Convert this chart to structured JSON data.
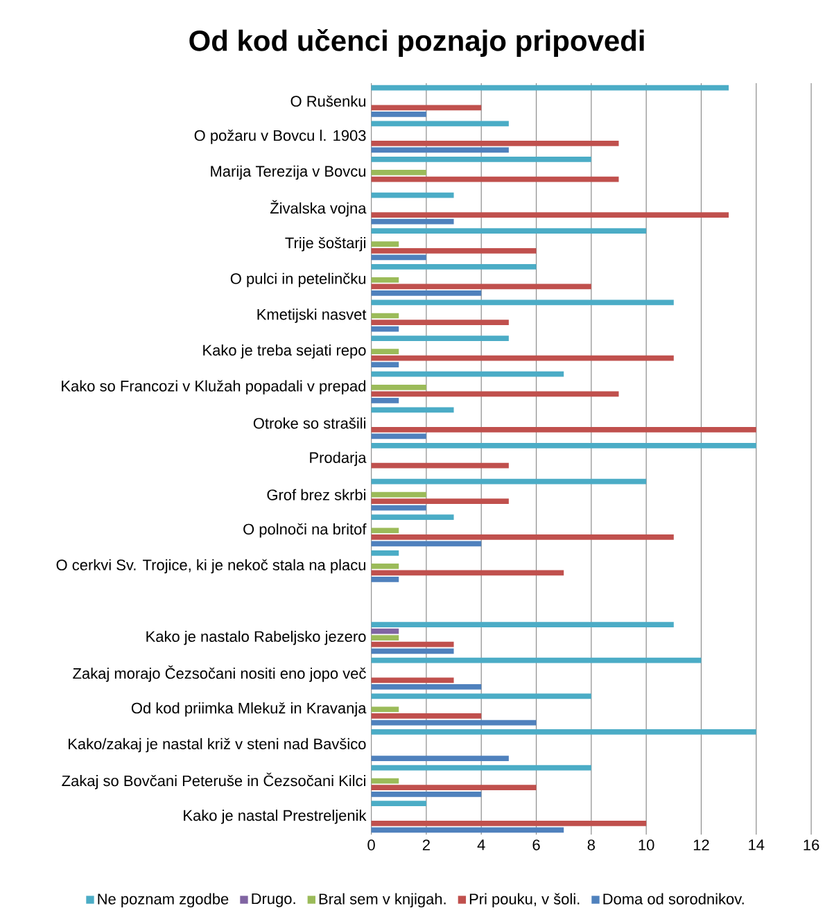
{
  "chart_data": {
    "type": "bar",
    "orientation": "horizontal",
    "title": "Od kod učenci poznajo pripovedi",
    "categories": [
      "O Rušenku",
      "O požaru v Bovcu l. 1903",
      "Marija Terezija v Bovcu",
      "Živalska vojna",
      "Trije šoštarji",
      "O pulci in petelinčku",
      "Kmetijski nasvet",
      "Kako je treba sejati repo",
      "Kako so Francozi v Klužah popadali v prepad",
      "Otroke so strašili",
      "Prodarja",
      "Grof brez skrbi",
      "O polnoči na britof",
      "O cerkvi Sv. Trojice, ki je nekoč stala na placu",
      null,
      "Kako je nastalo Rabeljsko jezero",
      "Zakaj morajo Čezsočani nositi eno jopo več",
      "Od kod priimka Mlekuž in Kravanja",
      "Kako/zakaj je nastal križ v steni nad Bavšico",
      "Zakaj so Bovčani Peteruše in Čezsočani Kilci",
      "Kako je nastal Prestreljenik"
    ],
    "series": [
      {
        "name": "Ne poznam zgodbe",
        "color": "#4bacc6",
        "values": [
          13,
          5,
          8,
          3,
          10,
          6,
          11,
          5,
          7,
          3,
          14,
          10,
          3,
          1,
          null,
          11,
          12,
          8,
          14,
          8,
          2
        ]
      },
      {
        "name": "Drugo.",
        "color": "#8064a2",
        "values": [
          null,
          null,
          null,
          null,
          null,
          null,
          null,
          null,
          null,
          null,
          null,
          null,
          null,
          null,
          null,
          1,
          null,
          null,
          null,
          null,
          null
        ]
      },
      {
        "name": "Bral sem v knjigah.",
        "color": "#9bbb59",
        "values": [
          null,
          null,
          2,
          null,
          1,
          1,
          1,
          1,
          2,
          null,
          null,
          2,
          1,
          1,
          null,
          1,
          null,
          1,
          null,
          1,
          null
        ]
      },
      {
        "name": "Pri pouku, v šoli.",
        "color": "#c0504d",
        "values": [
          4,
          9,
          9,
          13,
          6,
          8,
          5,
          11,
          9,
          14,
          5,
          5,
          11,
          7,
          null,
          3,
          3,
          4,
          null,
          6,
          10
        ]
      },
      {
        "name": "Doma od sorodnikov.",
        "color": "#4f81bd",
        "values": [
          2,
          5,
          null,
          3,
          2,
          4,
          1,
          1,
          1,
          2,
          null,
          2,
          4,
          1,
          null,
          3,
          4,
          6,
          5,
          4,
          7
        ]
      }
    ],
    "xlim": [
      0,
      16
    ],
    "xticks": [
      0,
      2,
      4,
      6,
      8,
      10,
      12,
      14,
      16
    ],
    "grid": "x",
    "legend": "bottom"
  }
}
